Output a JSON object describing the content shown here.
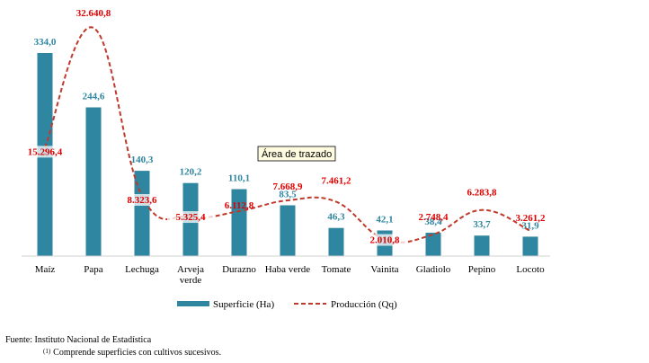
{
  "chart_data": {
    "type": "bar",
    "categories": [
      "Maíz",
      "Papa",
      "Lechuga",
      "Arveja verde",
      "Durazno",
      "Haba verde",
      "Tomate",
      "Vainita",
      "Gladiolo",
      "Pepino",
      "Locoto"
    ],
    "category_lines": [
      [
        "Maíz"
      ],
      [
        "Papa"
      ],
      [
        "Lechuga"
      ],
      [
        "Arveja",
        "verde"
      ],
      [
        "Durazno"
      ],
      [
        "Haba verde"
      ],
      [
        "Tomate"
      ],
      [
        "Vainita"
      ],
      [
        "Gladiolo"
      ],
      [
        "Pepino"
      ],
      [
        "Locoto"
      ]
    ],
    "series": [
      {
        "name": "Superficie (Ha)",
        "type": "bar",
        "color": "#2e86a0",
        "values": [
          334.0,
          244.6,
          140.3,
          120.2,
          110.1,
          83.5,
          46.3,
          42.1,
          38.4,
          33.7,
          31.9
        ],
        "labels": [
          "334,0",
          "244,6",
          "140,3",
          "120,2",
          "110,1",
          "83,5",
          "46,3",
          "42,1",
          "38,4",
          "33,7",
          "31,9"
        ]
      },
      {
        "name": "Producción (Qq)",
        "type": "line",
        "style": "dashed",
        "color": "#c0392b",
        "values": [
          15296.4,
          32640.8,
          8323.6,
          5325.4,
          6112.8,
          7668.9,
          7461.2,
          2010.8,
          2748.4,
          6283.8,
          3261.2
        ],
        "labels": [
          "15.296,4",
          "32.640,8",
          "8.323,6",
          "5.325,4",
          "6.112,8",
          "7.668,9",
          "7.461,2",
          "2.010,8",
          "2.748,4",
          "6.283,8",
          "3.261,2"
        ]
      }
    ],
    "legend_position": "bottom",
    "grid": false,
    "annotation": "Área de trazado"
  },
  "footer": {
    "source": "Fuente: Instituto Nacional de Estadística",
    "note_mark": "(1)",
    "note": "Comprende superficies con cultivos sucesivos."
  }
}
